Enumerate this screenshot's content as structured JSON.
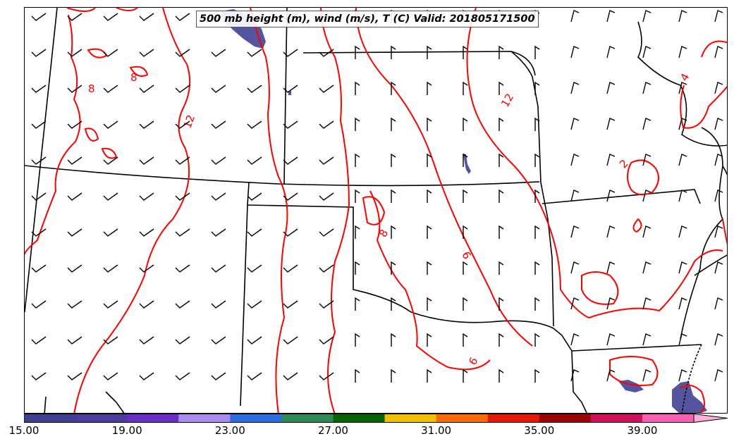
{
  "title": "500 mb height (m), wind (m/s), T (C) Valid: 201805171500",
  "contour_color": "#ff0000",
  "border_color": "#000000",
  "shading_color": "#4b4b9a",
  "contour_labels": [
    "8",
    "8",
    "12",
    "8",
    "6",
    "6",
    "12",
    "2",
    "4"
  ],
  "colorbar": {
    "min": 15.0,
    "max": 41.0,
    "extend": "max",
    "tick_labels": [
      "15.00",
      "19.00",
      "23.00",
      "27.00",
      "31.00",
      "35.00",
      "39.00"
    ],
    "colors": [
      "#3f3f8f",
      "#4b3c9e",
      "#6a2fc4",
      "#a98cf0",
      "#2e6de0",
      "#2e8b57",
      "#006400",
      "#f0c000",
      "#ff6a00",
      "#e51a00",
      "#a00000",
      "#d0105a",
      "#ff5fb0",
      "#ffb0d8"
    ]
  }
}
